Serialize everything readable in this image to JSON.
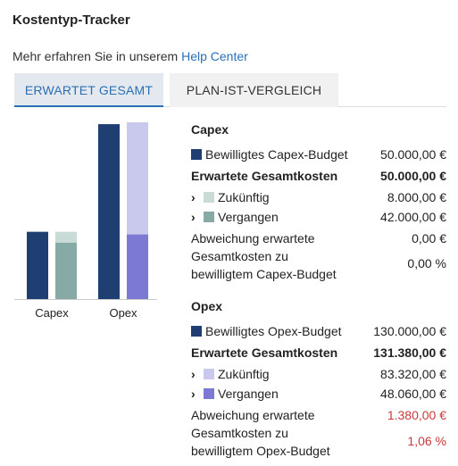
{
  "title": "Kostentyp-Tracker",
  "help": {
    "prefix": "Mehr erfahren Sie in unserem ",
    "link": "Help Center"
  },
  "tabs": [
    {
      "label": "ERWARTET GESAMT",
      "active": true
    },
    {
      "label": "PLAN-IST-VERGLEICH",
      "active": false
    }
  ],
  "colors": {
    "budget": "#1f3f72",
    "capex_future": "#c9dbd7",
    "capex_past": "#86aba6",
    "opex_future": "#c8c9ed",
    "opex_past": "#7c79d4",
    "accent": "#2b6fb5",
    "negative": "#c83a3a"
  },
  "chart_data": {
    "type": "bar",
    "stacked": true,
    "categories": [
      "Capex",
      "Opex"
    ],
    "series": [
      {
        "name": "Bewilligtes Budget",
        "values": [
          50000,
          130000
        ]
      },
      {
        "name": "Vergangen",
        "values": [
          42000,
          48060
        ]
      },
      {
        "name": "Zukünftig",
        "values": [
          8000,
          83320
        ]
      }
    ]
  },
  "capex": {
    "heading": "Capex",
    "budget_label": "Bewilligtes Capex-Budget",
    "budget_value": "50.000,00 €",
    "expected_label": "Erwartete Gesamtkosten",
    "expected_value": "50.000,00 €",
    "future_label": "Zukünftig",
    "future_value": "8.000,00 €",
    "past_label": "Vergangen",
    "past_value": "42.000,00 €",
    "deviation_label_1": "Abweichung erwartete",
    "deviation_label_2": "Gesamtkosten zu",
    "deviation_label_3": "bewilligtem Capex-Budget",
    "deviation_value": "0,00 €",
    "deviation_pct": "0,00 %"
  },
  "opex": {
    "heading": "Opex",
    "budget_label": "Bewilligtes Opex-Budget",
    "budget_value": "130.000,00 €",
    "expected_label": "Erwartete Gesamtkosten",
    "expected_value": "131.380,00 €",
    "future_label": "Zukünftig",
    "future_value": "83.320,00 €",
    "past_label": "Vergangen",
    "past_value": "48.060,00 €",
    "deviation_label_1": "Abweichung erwartete",
    "deviation_label_2": "Gesamtkosten zu",
    "deviation_label_3": "bewilligtem Opex-Budget",
    "deviation_value": "1.380,00 €",
    "deviation_pct": "1,06 %"
  },
  "chevron": "›"
}
